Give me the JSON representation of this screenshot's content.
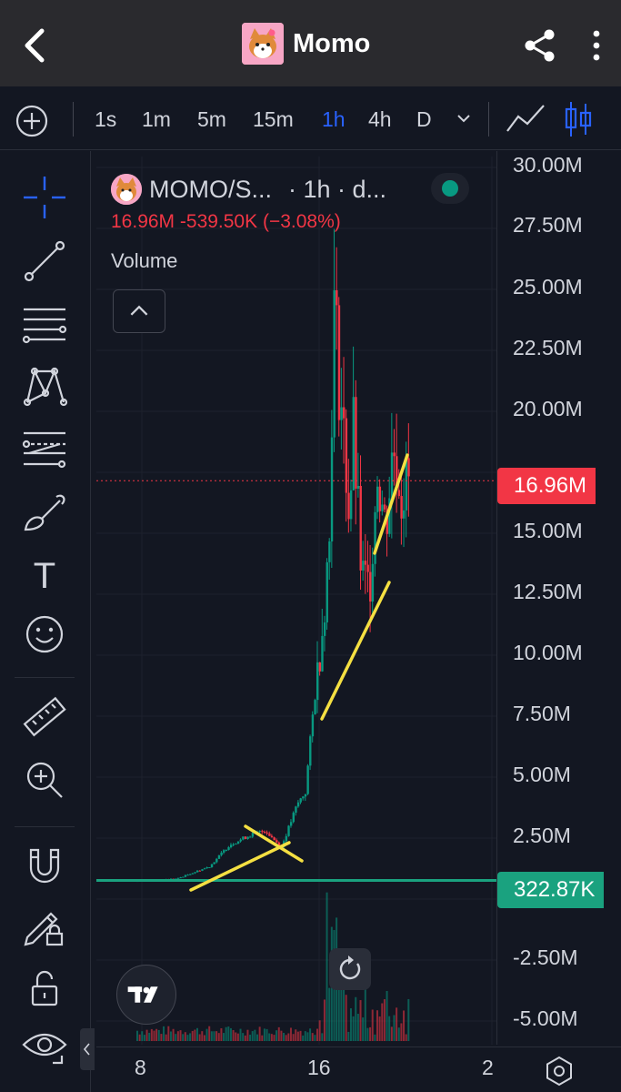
{
  "app": {
    "title": "Momo",
    "back_icon": "back-chevron-icon",
    "share_icon": "share-icon",
    "menu_icon": "kebab-menu-icon"
  },
  "timeframes": {
    "items": [
      "1s",
      "1m",
      "5m",
      "15m",
      "1h",
      "4h",
      "D"
    ],
    "active": "1h"
  },
  "toolbar": {
    "tools": [
      "crosshair-icon",
      "trend-line-icon",
      "horizontal-lines-icon",
      "pattern-icon",
      "fib-retracement-icon",
      "brush-icon",
      "text-icon",
      "emoji-icon",
      "ruler-icon",
      "zoom-in-icon",
      "magnet-icon",
      "lock-drawing-icon",
      "unlock-icon",
      "eye-icon"
    ],
    "text_tool_glyph": "T"
  },
  "legend": {
    "symbol": "MOMO/S...",
    "interval": "· 1h · d...",
    "price": "16.96M",
    "change": "-539.50K",
    "change_pct": "(−3.08%)",
    "indicator": "Volume"
  },
  "price_axis": {
    "labels": [
      "30.00M",
      "27.50M",
      "25.00M",
      "22.50M",
      "20.00M",
      "15.00M",
      "12.50M",
      "10.00M",
      "7.50M",
      "5.00M",
      "2.50M",
      "-2.50M",
      "-5.00M"
    ],
    "current_price_tag": "16.96M",
    "hline_tag": "322.87K"
  },
  "time_axis": {
    "labels": [
      "8",
      "16",
      "2"
    ]
  },
  "colors": {
    "up": "#089981",
    "down": "#f23645",
    "accent": "#2962ff",
    "drawing": "#f5e042",
    "hline": "#1aa27f"
  },
  "chart_data": {
    "type": "candlestick",
    "title": "MOMO/S...",
    "interval": "1h",
    "ylim": [
      -5000000,
      30000000
    ],
    "last_price": 16960000,
    "horizontal_line": 322870,
    "x_ticks": [
      "8",
      "16",
      "2"
    ],
    "ohlc_path": [
      {
        "x": 0.1,
        "close": 300000
      },
      {
        "x": 0.2,
        "close": 400000
      },
      {
        "x": 0.28,
        "close": 900000
      },
      {
        "x": 0.33,
        "close": 1800000
      },
      {
        "x": 0.38,
        "close": 2200000
      },
      {
        "x": 0.42,
        "close": 2400000
      },
      {
        "x": 0.46,
        "close": 1700000
      },
      {
        "x": 0.5,
        "close": 3500000
      },
      {
        "x": 0.52,
        "close": 4000000
      },
      {
        "x": 0.54,
        "close": 7500000
      },
      {
        "x": 0.56,
        "close": 10500000
      },
      {
        "x": 0.58,
        "close": 14500000
      },
      {
        "x": 0.59,
        "close": 24500000
      },
      {
        "x": 0.61,
        "close": 20000000
      },
      {
        "x": 0.63,
        "close": 15500000
      },
      {
        "x": 0.64,
        "close": 19000000
      },
      {
        "x": 0.66,
        "close": 13000000
      },
      {
        "x": 0.68,
        "close": 12500000
      },
      {
        "x": 0.7,
        "close": 17500000
      },
      {
        "x": 0.72,
        "close": 15000000
      },
      {
        "x": 0.74,
        "close": 18500000
      },
      {
        "x": 0.76,
        "close": 16500000
      },
      {
        "x": 0.78,
        "close": 16960000
      }
    ]
  }
}
